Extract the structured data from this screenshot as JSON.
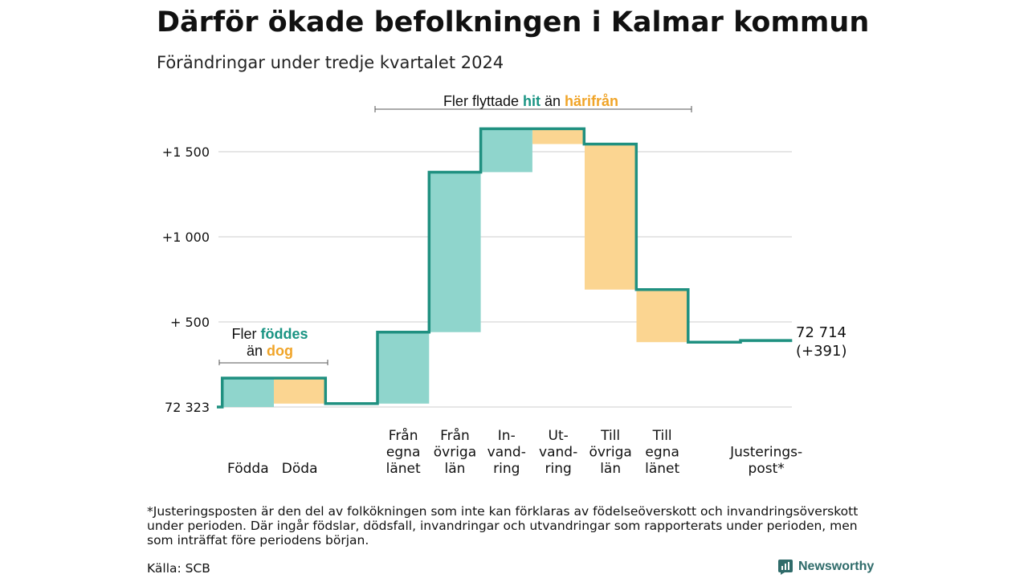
{
  "title": "Därför ökade befolkningen i Kalmar kommun",
  "subtitle": "Förändringar under tredje kvartalet 2024",
  "colors": {
    "positive": "#8fd5cc",
    "negative": "#fbd591",
    "line": "#1f9080",
    "teal_text": "#1a9483",
    "orange_text": "#f0a428",
    "grid": "#dddddd"
  },
  "annotations": {
    "birth": {
      "line1_prefix": "Fler ",
      "line1_highlight": "föddes",
      "line2_prefix": "än ",
      "line2_highlight": "dog"
    },
    "migration": {
      "prefix": "Fler flyttade ",
      "highlight1": "hit",
      "middle": " än ",
      "highlight2": "härifrån"
    }
  },
  "end_label": {
    "value": "72 714",
    "change": "(+391)"
  },
  "footnote": "*Justeringsposten är den del av folkökningen som inte kan förklaras av födelseöverskott och invandringsöverskott under perioden. Där ingår födslar, dödsfall, invandringar och utvandringar som rapporterats under perioden, men som inträffat före periodens början.",
  "source": "Källa: SCB",
  "brand": "Newsworthy",
  "chart_data": {
    "type": "bar",
    "subtype": "waterfall",
    "base": 72323,
    "yticks": [
      {
        "value": 0,
        "label": "72 323"
      },
      {
        "value": 500,
        "label": "+  500"
      },
      {
        "value": 1000,
        "label": "+1 000"
      },
      {
        "value": 1500,
        "label": "+1 500"
      }
    ],
    "ylim": [
      0,
      1700
    ],
    "grid": true,
    "categories": [
      {
        "lines": [
          "Födda"
        ],
        "value": 170
      },
      {
        "lines": [
          "Döda"
        ],
        "value": -150
      },
      {
        "lines": [
          "Från",
          "egna",
          "länet"
        ],
        "value": 420
      },
      {
        "lines": [
          "Från",
          "övriga",
          "län"
        ],
        "value": 940
      },
      {
        "lines": [
          "In-",
          "vand-",
          "ring"
        ],
        "value": 255
      },
      {
        "lines": [
          "Ut-",
          "vand-",
          "ring"
        ],
        "value": -90
      },
      {
        "lines": [
          "Till",
          "övriga",
          "län"
        ],
        "value": -855
      },
      {
        "lines": [
          "Till",
          "egna",
          "länet"
        ],
        "value": -309
      },
      {
        "lines": [
          "Justerings-",
          "post*"
        ],
        "value": 10
      }
    ],
    "total_change": 391,
    "end_value": 72714
  }
}
